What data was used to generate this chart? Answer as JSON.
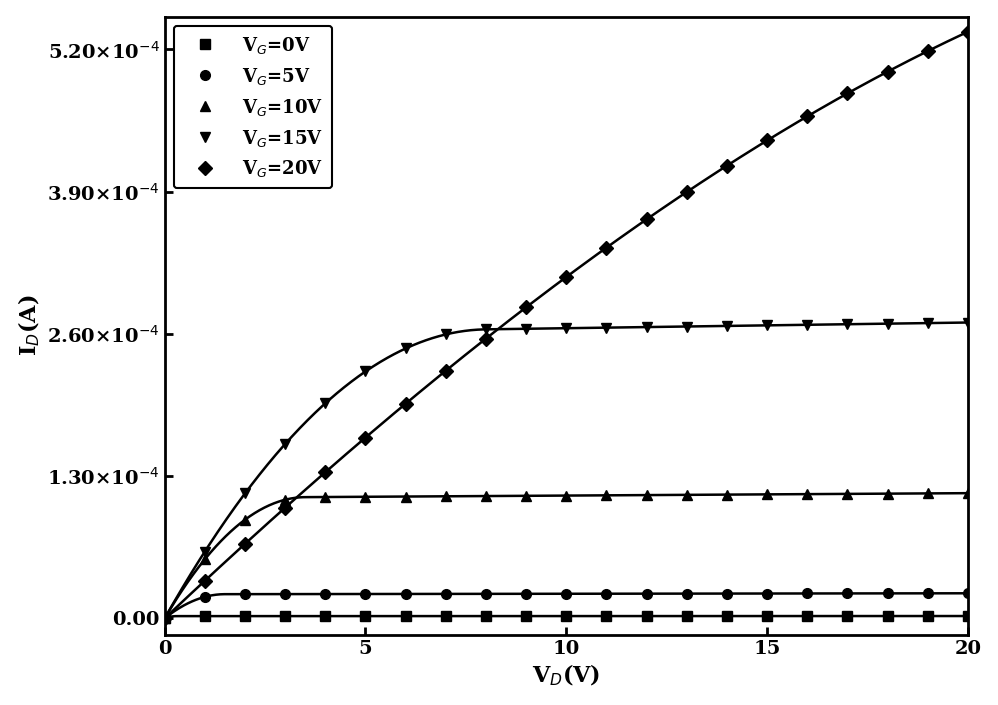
{
  "xlabel": "V$_{D}$(V)",
  "ylabel": "I$_{D}$(A)",
  "xlim": [
    0,
    20
  ],
  "ylim": [
    -1.5e-05,
    0.00055
  ],
  "yticks": [
    0.0,
    0.00013,
    0.00026,
    0.00039,
    0.00052
  ],
  "ytick_labels": [
    "0.00",
    "1.30×10$^{-4}$",
    "2.60×10$^{-4}$",
    "3.90×10$^{-4}$",
    "5.20×10$^{-4}$"
  ],
  "xticks": [
    0,
    5,
    10,
    15,
    20
  ],
  "series": [
    {
      "label": "V$_{G}$=0V",
      "sat_current": 2e-06,
      "Vov": 0.3,
      "lambda": 0.002,
      "marker": "s",
      "markersize": 7
    },
    {
      "label": "V$_{G}$=5V",
      "sat_current": 2.2e-05,
      "Vov": 1.5,
      "lambda": 0.002,
      "marker": "o",
      "markersize": 7
    },
    {
      "label": "V$_{G}$=10V",
      "sat_current": 0.00011,
      "Vov": 3.5,
      "lambda": 0.002,
      "marker": "^",
      "markersize": 7
    },
    {
      "label": "V$_{G}$=15V",
      "sat_current": 0.00026,
      "Vov": 8.0,
      "lambda": 0.002,
      "marker": "v",
      "markersize": 7
    },
    {
      "label": "V$_{G}$=20V",
      "sat_current": 0.00052,
      "Vov": 30.0,
      "lambda": 0.008,
      "marker": "D",
      "markersize": 7
    }
  ],
  "background_color": "#ffffff",
  "line_color": "#000000",
  "linewidth": 1.8,
  "legend_fontsize": 13,
  "axis_label_fontsize": 16,
  "tick_label_fontsize": 14,
  "n_markers": 21
}
